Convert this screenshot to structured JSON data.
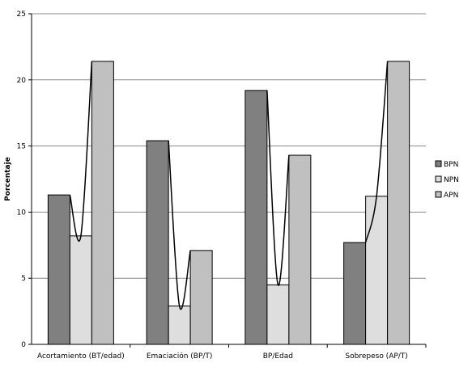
{
  "chart_data": {
    "type": "bar",
    "title": "",
    "xlabel": "",
    "ylabel": "Porcentaje",
    "ylim": [
      0,
      25
    ],
    "yticks": [
      0,
      5,
      10,
      15,
      20,
      25
    ],
    "grid": true,
    "legend_position": "right",
    "categories": [
      "Acortamiento (BT/edad)",
      "Emaciación (BP/T)",
      "BP/Edad",
      "Sobrepeso (AP/T)"
    ],
    "series": [
      {
        "name": "BPN",
        "color": "#808080",
        "values": [
          11.3,
          15.4,
          19.2,
          7.7
        ]
      },
      {
        "name": "NPN",
        "color": "#dedede",
        "values": [
          8.2,
          2.9,
          4.5,
          11.2
        ]
      },
      {
        "name": "APN",
        "color": "#c0c0c0",
        "values": [
          21.4,
          7.1,
          14.3,
          21.4
        ]
      }
    ]
  }
}
